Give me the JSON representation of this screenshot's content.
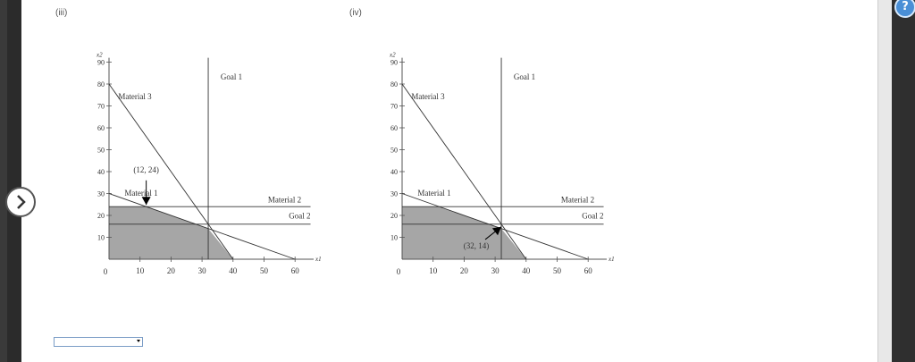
{
  "help_icon": "question-mark-icon",
  "nav_icon": "chevron-right-icon",
  "labels": {
    "iii": "(iii)",
    "iv": "(iv)"
  },
  "answer_select": {
    "value": ""
  },
  "charts": [
    {
      "id": "iii",
      "chart_data": {
        "type": "line",
        "xlabel": "x1",
        "ylabel": "x2",
        "xlim": [
          0,
          66
        ],
        "ylim": [
          0,
          92
        ],
        "x_ticks": [
          10,
          20,
          30,
          40,
          50,
          60
        ],
        "y_ticks": [
          10,
          20,
          30,
          40,
          50,
          60,
          70,
          80,
          90
        ],
        "origin_label": "0",
        "lines": [
          {
            "name": "Material 1",
            "points": [
              [
                0,
                30
              ],
              [
                60,
                0
              ]
            ]
          },
          {
            "name": "Material 3",
            "points": [
              [
                0,
                80
              ],
              [
                40,
                0
              ]
            ]
          },
          {
            "name": "Goal 1",
            "points": [
              [
                32,
                0
              ],
              [
                32,
                92
              ]
            ]
          },
          {
            "name": "Material 2",
            "points": [
              [
                0,
                24
              ],
              [
                65,
                24
              ]
            ]
          },
          {
            "name": "Goal 2",
            "points": [
              [
                0,
                16
              ],
              [
                65,
                16
              ]
            ]
          }
        ],
        "shaded_region": [
          [
            0,
            0
          ],
          [
            0,
            24
          ],
          [
            12,
            24
          ],
          [
            32,
            14
          ],
          [
            40,
            0
          ]
        ],
        "annotation": {
          "text": "(12, 24)",
          "point": [
            12,
            24
          ]
        }
      }
    },
    {
      "id": "iv",
      "chart_data": {
        "type": "line",
        "xlabel": "x1",
        "ylabel": "x2",
        "xlim": [
          0,
          66
        ],
        "ylim": [
          0,
          92
        ],
        "x_ticks": [
          10,
          20,
          30,
          40,
          50,
          60
        ],
        "y_ticks": [
          10,
          20,
          30,
          40,
          50,
          60,
          70,
          80,
          90
        ],
        "origin_label": "0",
        "lines": [
          {
            "name": "Material 1",
            "points": [
              [
                0,
                30
              ],
              [
                60,
                0
              ]
            ]
          },
          {
            "name": "Material 3",
            "points": [
              [
                0,
                80
              ],
              [
                40,
                0
              ]
            ]
          },
          {
            "name": "Goal 1",
            "points": [
              [
                32,
                0
              ],
              [
                32,
                92
              ]
            ]
          },
          {
            "name": "Material 2",
            "points": [
              [
                0,
                24
              ],
              [
                65,
                24
              ]
            ]
          },
          {
            "name": "Goal 2",
            "points": [
              [
                0,
                16
              ],
              [
                65,
                16
              ]
            ]
          }
        ],
        "shaded_region": [
          [
            0,
            0
          ],
          [
            0,
            24
          ],
          [
            12,
            24
          ],
          [
            32,
            14
          ],
          [
            40,
            0
          ]
        ],
        "annotation": {
          "text": "(32, 14)",
          "point": [
            32,
            14
          ]
        }
      }
    }
  ]
}
